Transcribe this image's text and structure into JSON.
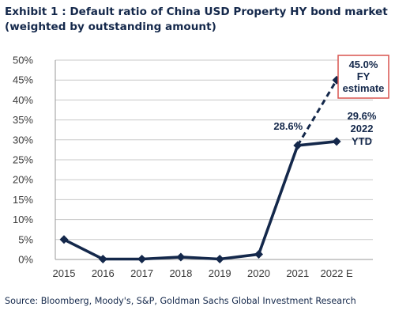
{
  "title": "Exhibit 1 : Default ratio of China USD Property HY bond market (weighted by outstanding amount)",
  "source": "Source: Bloomberg, Moody's, S&P, Goldman Sachs Global Investment Research",
  "colors": {
    "line": "#14284b",
    "annotation_box": "#d9534f",
    "grid": "#c8c8c8"
  },
  "chart_data": {
    "type": "line",
    "categories": [
      "2015",
      "2016",
      "2017",
      "2018",
      "2019",
      "2020",
      "2021",
      "2022 E"
    ],
    "series": [
      {
        "values": [
          5.0,
          0.1,
          0.1,
          0.6,
          0.1,
          1.3,
          28.6,
          29.6
        ]
      }
    ],
    "estimate_segment": {
      "from_category": "2021",
      "to_category": "2022 E",
      "from_value": 28.6,
      "to_value": 45.0,
      "style": "dashed"
    },
    "ylim": [
      0,
      50
    ],
    "yticks": [
      "0%",
      "5%",
      "10%",
      "15%",
      "20%",
      "25%",
      "30%",
      "35%",
      "40%",
      "45%",
      "50%"
    ],
    "grid": true,
    "annotations": {
      "label_2021": "28.6%",
      "estimate": [
        "45.0%",
        "FY",
        "estimate"
      ],
      "ytd": [
        "29.6%",
        "2022",
        "YTD"
      ]
    }
  }
}
